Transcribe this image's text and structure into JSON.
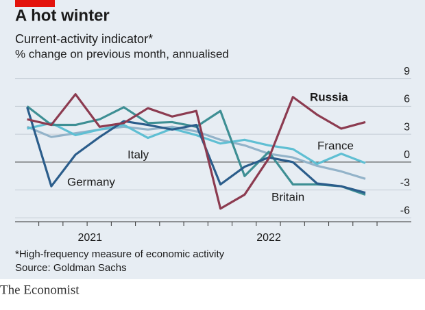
{
  "chart_data": {
    "type": "line",
    "title": "A hot winter",
    "subtitle": "Current-activity indicator*",
    "axis_label": "% change on previous month, annualised",
    "footnote": "*High-frequency measure of economic activity",
    "source": "Source: Goldman Sachs",
    "brand": "The Economist",
    "x": [
      0,
      1,
      2,
      3,
      4,
      5,
      6,
      7,
      8,
      9,
      10,
      11,
      12,
      13,
      14
    ],
    "xlim": [
      -0.5,
      15.9
    ],
    "xticks": [
      {
        "value": 2.6,
        "label": "2021"
      },
      {
        "value": 10,
        "label": "2022"
      }
    ],
    "ylim": [
      -7,
      10
    ],
    "yticks": [
      9,
      6,
      3,
      0,
      -3,
      -6
    ],
    "grid": true,
    "series": [
      {
        "name": "Italy",
        "color": "#93b3c9",
        "values": [
          3.8,
          2.7,
          3.1,
          3.5,
          3.8,
          3.5,
          3.8,
          3.3,
          2.4,
          1.8,
          0.9,
          0.5,
          -0.4,
          -1,
          -1.8
        ]
      },
      {
        "name": "France",
        "color": "#5fbfd3",
        "values": [
          3.6,
          4.2,
          2.9,
          3.5,
          4.0,
          2.6,
          3.6,
          2.9,
          2.0,
          2.4,
          1.8,
          1.4,
          -0.2,
          0.9,
          -0.1
        ]
      },
      {
        "name": "Britain",
        "color": "#3e8f94",
        "values": [
          6,
          4,
          4,
          4.6,
          5.9,
          4.2,
          4.3,
          3.8,
          5.5,
          -1.5,
          1.1,
          -2.4,
          -2.4,
          -2.6,
          -3.5
        ]
      },
      {
        "name": "Germany",
        "color": "#2b5d8b",
        "values": [
          5.9,
          -2.6,
          0.8,
          2.7,
          4.4,
          4.0,
          3.5,
          4.0,
          -2.4,
          -0.5,
          0.5,
          0,
          -2.3,
          -2.6,
          -3.3
        ]
      },
      {
        "name": "Russia",
        "color": "#8c3b50",
        "values": [
          4.6,
          4.0,
          7.3,
          3.8,
          4.2,
          5.8,
          4.9,
          5.5,
          -5,
          -3.5,
          0.4,
          7,
          5.1,
          3.6,
          4.3
        ]
      }
    ]
  }
}
